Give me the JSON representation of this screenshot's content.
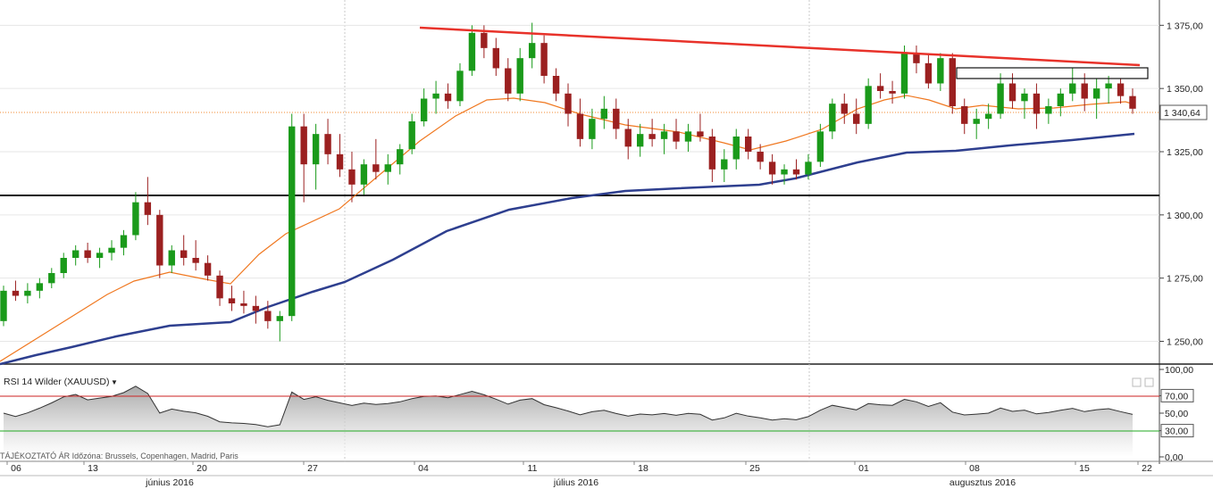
{
  "chart_data": {
    "type": "candlestick",
    "instrument": "XAUUSD",
    "price_axis": {
      "ticks": [
        "1 375,00",
        "1 350,00",
        "1 325,00",
        "1 300,00",
        "1 275,00",
        "1 250,00"
      ],
      "tick_values": [
        1375,
        1350,
        1325,
        1300,
        1275,
        1250
      ],
      "range": [
        1241,
        1385
      ],
      "current_price_label": "1 340,64",
      "current_price": 1340.64
    },
    "rsi": {
      "title": "RSI 14 Wilder (XAUUSD)",
      "ticks": [
        "100,00",
        "70,00",
        "50,00",
        "30,00",
        "0,00"
      ],
      "tick_values": [
        100,
        70,
        50,
        30,
        0
      ],
      "overbought": 70,
      "oversold": 30
    },
    "x_axis": {
      "day_labels": [
        "06",
        "13",
        "20",
        "27",
        "04",
        "11",
        "18",
        "25",
        "01",
        "08",
        "15",
        "22"
      ],
      "month_labels": [
        "június 2016",
        "július 2016",
        "augusztus 2016"
      ],
      "footer_note": "TÁJÉKOZTATÓ ÁR  Időzóna: Brussels, Copenhagen, Madrid, Paris"
    },
    "colors": {
      "up": "#1a9a1a",
      "down": "#9b2020",
      "sma_fast": "#f07820",
      "sma_slow": "#2e3f8f",
      "trendline": "#e8322a",
      "rsi_line": "#333333",
      "rsi_70": "#cc2222",
      "rsi_30": "#22aa22"
    },
    "candles_ohlc": [
      [
        1258,
        1272,
        1256,
        1270
      ],
      [
        1270,
        1274,
        1266,
        1268
      ],
      [
        1268,
        1273,
        1265,
        1270
      ],
      [
        1270,
        1275,
        1267,
        1273
      ],
      [
        1273,
        1279,
        1271,
        1277
      ],
      [
        1277,
        1285,
        1275,
        1283
      ],
      [
        1283,
        1288,
        1280,
        1286
      ],
      [
        1286,
        1289,
        1281,
        1283
      ],
      [
        1283,
        1287,
        1279,
        1285
      ],
      [
        1285,
        1290,
        1282,
        1287
      ],
      [
        1287,
        1294,
        1284,
        1292
      ],
      [
        1292,
        1309,
        1290,
        1305
      ],
      [
        1305,
        1315,
        1296,
        1300
      ],
      [
        1300,
        1302,
        1275,
        1280
      ],
      [
        1280,
        1288,
        1277,
        1286
      ],
      [
        1286,
        1292,
        1280,
        1283
      ],
      [
        1283,
        1290,
        1278,
        1281
      ],
      [
        1281,
        1284,
        1274,
        1276
      ],
      [
        1276,
        1278,
        1264,
        1267
      ],
      [
        1267,
        1272,
        1262,
        1265
      ],
      [
        1265,
        1270,
        1261,
        1264
      ],
      [
        1264,
        1268,
        1257,
        1262
      ],
      [
        1262,
        1266,
        1255,
        1258
      ],
      [
        1258,
        1262,
        1250,
        1260
      ],
      [
        1260,
        1340,
        1258,
        1335
      ],
      [
        1335,
        1340,
        1305,
        1320
      ],
      [
        1320,
        1336,
        1310,
        1332
      ],
      [
        1332,
        1338,
        1320,
        1324
      ],
      [
        1324,
        1332,
        1315,
        1318
      ],
      [
        1318,
        1325,
        1305,
        1312
      ],
      [
        1312,
        1322,
        1308,
        1320
      ],
      [
        1320,
        1330,
        1314,
        1317
      ],
      [
        1317,
        1324,
        1312,
        1320
      ],
      [
        1320,
        1328,
        1316,
        1326
      ],
      [
        1326,
        1340,
        1324,
        1337
      ],
      [
        1337,
        1350,
        1335,
        1346
      ],
      [
        1346,
        1353,
        1340,
        1348
      ],
      [
        1348,
        1352,
        1342,
        1345
      ],
      [
        1345,
        1360,
        1343,
        1357
      ],
      [
        1357,
        1375,
        1355,
        1372
      ],
      [
        1372,
        1375,
        1362,
        1366
      ],
      [
        1366,
        1370,
        1355,
        1358
      ],
      [
        1358,
        1362,
        1345,
        1348
      ],
      [
        1348,
        1366,
        1345,
        1362
      ],
      [
        1362,
        1376,
        1358,
        1368
      ],
      [
        1368,
        1371,
        1352,
        1355
      ],
      [
        1355,
        1358,
        1345,
        1348
      ],
      [
        1348,
        1352,
        1335,
        1340
      ],
      [
        1340,
        1346,
        1327,
        1330
      ],
      [
        1330,
        1342,
        1326,
        1338
      ],
      [
        1338,
        1347,
        1334,
        1342
      ],
      [
        1342,
        1346,
        1330,
        1334
      ],
      [
        1334,
        1338,
        1322,
        1327
      ],
      [
        1327,
        1336,
        1323,
        1332
      ],
      [
        1332,
        1338,
        1327,
        1330
      ],
      [
        1330,
        1336,
        1324,
        1333
      ],
      [
        1333,
        1338,
        1326,
        1329
      ],
      [
        1329,
        1336,
        1325,
        1333
      ],
      [
        1333,
        1340,
        1329,
        1331
      ],
      [
        1331,
        1334,
        1313,
        1318
      ],
      [
        1318,
        1326,
        1313,
        1322
      ],
      [
        1322,
        1334,
        1318,
        1331
      ],
      [
        1331,
        1334,
        1322,
        1325
      ],
      [
        1325,
        1328,
        1318,
        1321
      ],
      [
        1321,
        1324,
        1312,
        1316
      ],
      [
        1316,
        1320,
        1312,
        1318
      ],
      [
        1318,
        1322,
        1314,
        1316
      ],
      [
        1316,
        1324,
        1314,
        1321
      ],
      [
        1321,
        1336,
        1319,
        1333
      ],
      [
        1333,
        1346,
        1330,
        1344
      ],
      [
        1344,
        1348,
        1336,
        1340
      ],
      [
        1340,
        1346,
        1332,
        1336
      ],
      [
        1336,
        1354,
        1334,
        1351
      ],
      [
        1351,
        1356,
        1346,
        1349
      ],
      [
        1349,
        1353,
        1344,
        1348
      ],
      [
        1348,
        1367,
        1346,
        1364
      ],
      [
        1364,
        1367,
        1356,
        1360
      ],
      [
        1360,
        1364,
        1350,
        1352
      ],
      [
        1352,
        1364,
        1349,
        1362
      ],
      [
        1362,
        1364,
        1340,
        1343
      ],
      [
        1343,
        1346,
        1332,
        1336
      ],
      [
        1336,
        1342,
        1330,
        1338
      ],
      [
        1338,
        1344,
        1334,
        1340
      ],
      [
        1340,
        1356,
        1338,
        1352
      ],
      [
        1352,
        1356,
        1342,
        1345
      ],
      [
        1345,
        1350,
        1338,
        1348
      ],
      [
        1348,
        1352,
        1334,
        1340
      ],
      [
        1340,
        1346,
        1336,
        1343
      ],
      [
        1343,
        1350,
        1339,
        1348
      ],
      [
        1348,
        1358,
        1345,
        1352
      ],
      [
        1352,
        1356,
        1341,
        1346
      ],
      [
        1346,
        1354,
        1338,
        1350
      ],
      [
        1350,
        1355,
        1344,
        1352
      ],
      [
        1352,
        1354,
        1344,
        1347
      ],
      [
        1347,
        1350,
        1340,
        1342
      ]
    ]
  }
}
